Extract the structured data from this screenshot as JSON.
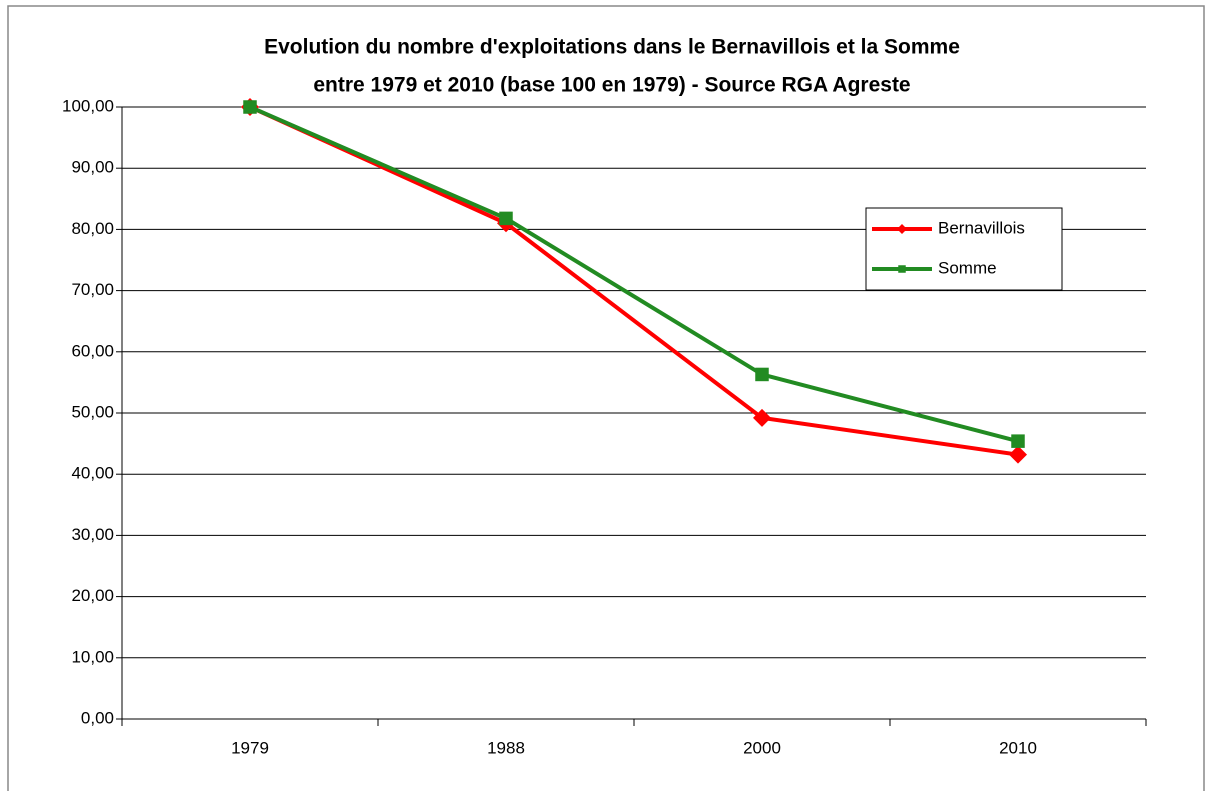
{
  "chart_data": {
    "type": "line",
    "title": [
      "Evolution du nombre d'exploitations dans le Bernavillois et la Somme",
      "entre 1979 et 2010 (base 100 en 1979) - Source RGA Agreste"
    ],
    "categories": [
      "1979",
      "1988",
      "2000",
      "2010"
    ],
    "series": [
      {
        "name": "Bernavillois",
        "color": "#ff0000",
        "marker": "diamond",
        "values": [
          100,
          81,
          49.2,
          43.2
        ]
      },
      {
        "name": "Somme",
        "color": "#228b22",
        "marker": "square",
        "values": [
          100,
          81.8,
          56.3,
          45.4
        ]
      }
    ],
    "ylim": [
      0,
      100
    ],
    "yticks": [
      {
        "value": 0,
        "label": "0,00"
      },
      {
        "value": 10,
        "label": "10,00"
      },
      {
        "value": 20,
        "label": "20,00"
      },
      {
        "value": 30,
        "label": "30,00"
      },
      {
        "value": 40,
        "label": "40,00"
      },
      {
        "value": 50,
        "label": "50,00"
      },
      {
        "value": 60,
        "label": "60,00"
      },
      {
        "value": 70,
        "label": "70,00"
      },
      {
        "value": 80,
        "label": "80,00"
      },
      {
        "value": 90,
        "label": "90,00"
      },
      {
        "value": 100,
        "label": "100,00"
      }
    ],
    "grid": true,
    "legend": "upper right"
  }
}
